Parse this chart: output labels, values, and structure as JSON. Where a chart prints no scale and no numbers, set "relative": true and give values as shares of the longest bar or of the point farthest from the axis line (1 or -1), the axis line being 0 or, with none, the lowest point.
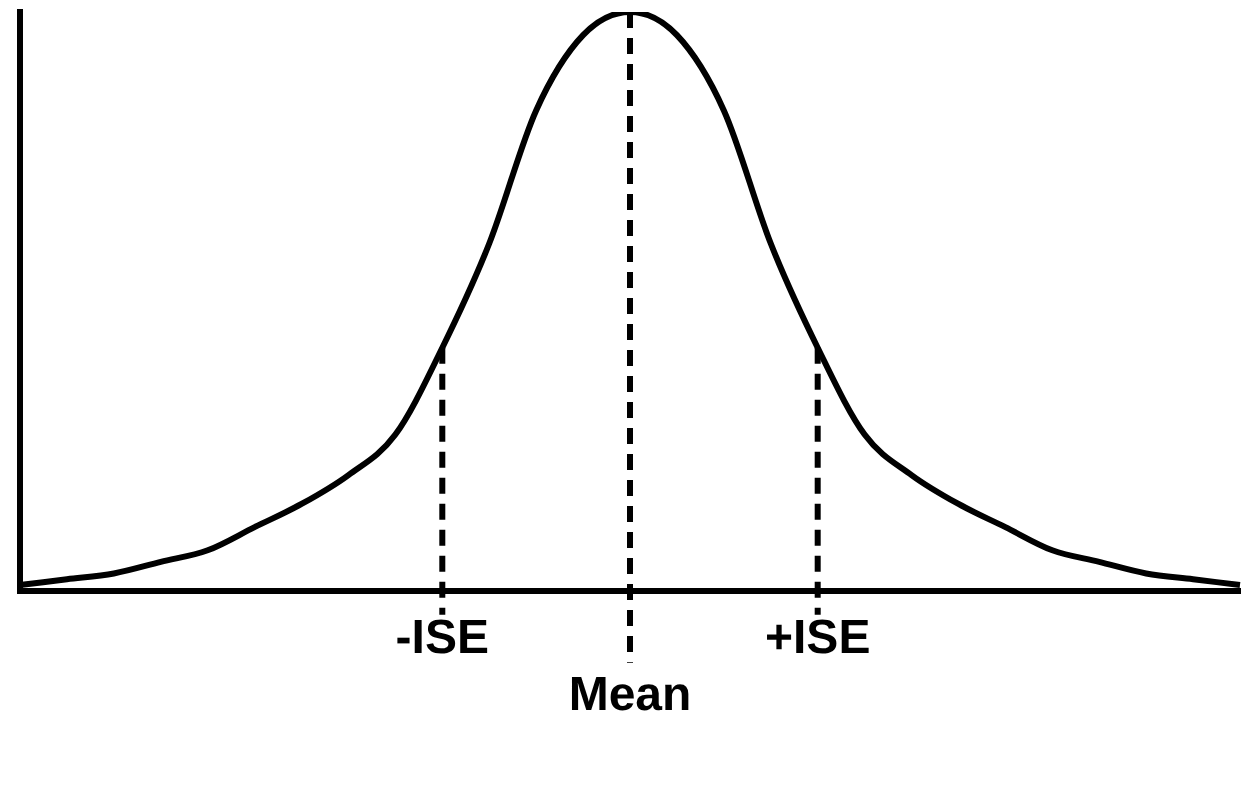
{
  "chart_data": {
    "type": "line",
    "relative": true,
    "tick_labels": "x",
    "legend": false,
    "marker": "none",
    "line_style": "solid",
    "categories": [
      null,
      null,
      null,
      null,
      null,
      null,
      null,
      null,
      null,
      "-ISE",
      null,
      null,
      null,
      "Mean",
      null,
      null,
      null,
      "+ISE",
      null,
      null,
      null,
      null,
      null,
      null,
      null,
      null,
      null
    ],
    "series": [
      {
        "color": "#000000",
        "values": [
          0.01,
          0.02,
          0.03,
          0.05,
          0.07,
          0.11,
          0.15,
          0.2,
          0.27,
          0.42,
          0.6,
          0.83,
          0.96,
          1,
          0.96,
          0.83,
          0.6,
          0.42,
          0.27,
          0.2,
          0.15,
          0.11,
          0.07,
          0.05,
          0.03,
          0.02,
          0.01
        ]
      }
    ],
    "ref_lines": [
      {
        "axis": "x",
        "value": "-ISE",
        "line_style": "dashed",
        "color": "#000000"
      },
      {
        "axis": "x",
        "value": "Mean",
        "line_style": "dashed",
        "color": "#000000"
      },
      {
        "axis": "x",
        "value": "+ISE",
        "line_style": "dashed",
        "color": "#000000"
      }
    ]
  }
}
